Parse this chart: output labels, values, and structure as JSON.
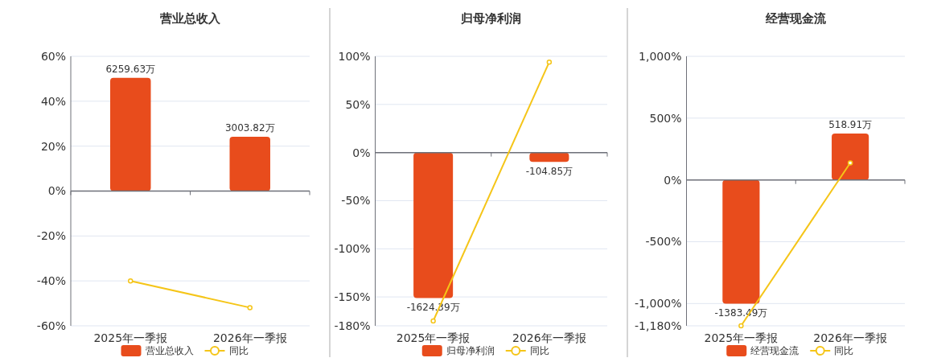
{
  "chart_data": [
    {
      "type": "bar",
      "title": "营业总收入",
      "categories": [
        "2025年一季报",
        "2026年一季报"
      ],
      "series": [
        {
          "name": "营业总收入",
          "color": "#e84c1c",
          "axis": "y2",
          "values": [
            6259.63,
            3003.82
          ],
          "value_labels": [
            "6259.63万",
            "3003.82万"
          ]
        },
        {
          "name": "同比",
          "type": "line",
          "color": "#f5c518",
          "values": [
            -40.0,
            -51.9
          ]
        }
      ],
      "ylim": [
        -60,
        60
      ],
      "yticks": [
        {
          "value": -60,
          "label": "-60%"
        },
        {
          "value": -40,
          "label": "-40%"
        },
        {
          "value": -20,
          "label": "-20%"
        },
        {
          "value": 0,
          "label": "0%"
        },
        {
          "value": 20,
          "label": "20%"
        },
        {
          "value": 40,
          "label": "40%"
        },
        {
          "value": 60,
          "label": "60%"
        }
      ],
      "y2lim": [
        -7450,
        7450
      ],
      "grid": "y",
      "legend": "bottom",
      "marker": "circle"
    },
    {
      "type": "bar",
      "title": "归母净利润",
      "categories": [
        "2025年一季报",
        "2026年一季报"
      ],
      "series": [
        {
          "name": "归母净利润",
          "color": "#e84c1c",
          "axis": "y2",
          "values": [
            -1624.39,
            -104.85
          ],
          "value_labels": [
            "-1624.39万",
            "-104.85万"
          ]
        },
        {
          "name": "同比",
          "type": "line",
          "color": "#f5c518",
          "values": [
            -175,
            94
          ]
        }
      ],
      "ylim": [
        -180,
        100
      ],
      "yticks": [
        {
          "value": -180,
          "label": "-180%"
        },
        {
          "value": -150,
          "label": "-150%"
        },
        {
          "value": -100,
          "label": "-100%"
        },
        {
          "value": -50,
          "label": "-50%"
        },
        {
          "value": 0,
          "label": "0%"
        },
        {
          "value": 50,
          "label": "50%"
        },
        {
          "value": 100,
          "label": "100%"
        }
      ],
      "y2lim": [
        -1935,
        1075
      ],
      "grid": "y",
      "legend": "bottom",
      "marker": "circle"
    },
    {
      "type": "bar",
      "title": "经营现金流",
      "categories": [
        "2025年一季报",
        "2026年一季报"
      ],
      "series": [
        {
          "name": "经营现金流",
          "color": "#e84c1c",
          "axis": "y2",
          "values": [
            -1383.49,
            518.91
          ],
          "value_labels": [
            "-1383.49万",
            "518.91万"
          ]
        },
        {
          "name": "同比",
          "type": "line",
          "color": "#f5c518",
          "values": [
            -1180,
            138
          ]
        }
      ],
      "ylim": [
        -1180,
        1000
      ],
      "yticks": [
        {
          "value": -1180,
          "label": "-1,180%"
        },
        {
          "value": -1000,
          "label": "-1,000%"
        },
        {
          "value": -500,
          "label": "-500%"
        },
        {
          "value": 0,
          "label": "0%"
        },
        {
          "value": 500,
          "label": "500%"
        },
        {
          "value": 1000,
          "label": "1,000%"
        }
      ],
      "y2lim": [
        -1632,
        1383
      ],
      "grid": "y",
      "legend": "bottom",
      "marker": "circle"
    }
  ]
}
